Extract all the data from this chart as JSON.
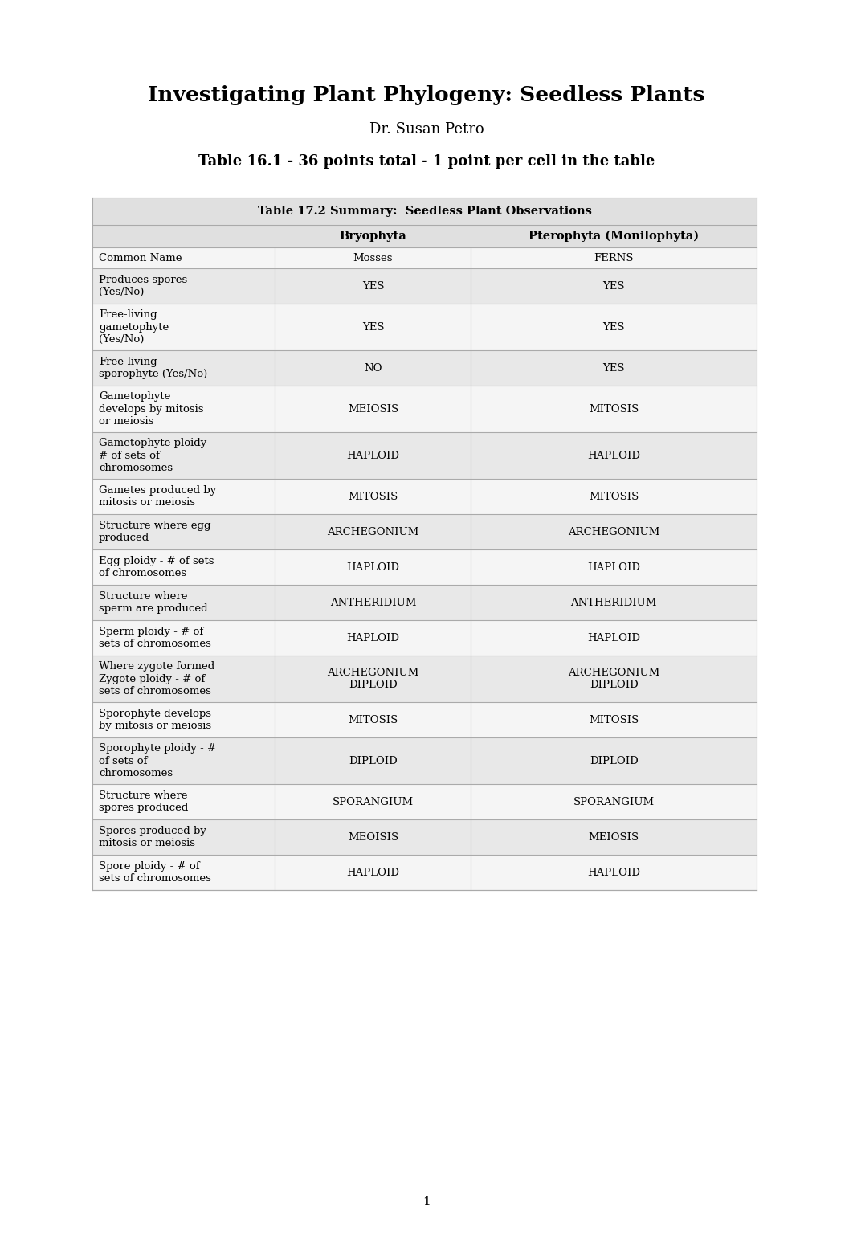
{
  "title": "Investigating Plant Phylogeny: Seedless Plants",
  "subtitle1": "Dr. Susan Petro",
  "subtitle2": "Table 16.1 - 36 points total - 1 point per cell in the table",
  "table_title": "Table 17.2 Summary:  Seedless Plant Observations",
  "col_headers": [
    "Bryophyta",
    "Pterophyta (Monilophyta)"
  ],
  "rows": [
    [
      "Common Name",
      "Mosses",
      "FERNS"
    ],
    [
      "Produces spores\n(Yes/No)",
      "YES",
      "YES"
    ],
    [
      "Free-living\ngametophyte\n(Yes/No)",
      "YES",
      "YES"
    ],
    [
      "Free-living\nsporophyte (Yes/No)",
      "NO",
      "YES"
    ],
    [
      "Gametophyte\ndevelops by mitosis\nor meiosis",
      "MEIOSIS",
      "MITOSIS"
    ],
    [
      "Gametophyte ploidy -\n# of sets of\nchromosomes",
      "HAPLOID",
      "HAPLOID"
    ],
    [
      "Gametes produced by\nmitosis or meiosis",
      "MITOSIS",
      "MITOSIS"
    ],
    [
      "Structure where egg\nproduced",
      "ARCHEGONIUM",
      "ARCHEGONIUM"
    ],
    [
      "Egg ploidy - # of sets\nof chromosomes",
      "HAPLOID",
      "HAPLOID"
    ],
    [
      "Structure where\nsperm are produced",
      "ANTHERIDIUM",
      "ANTHERIDIUM"
    ],
    [
      "Sperm ploidy - # of\nsets of chromosomes",
      "HAPLOID",
      "HAPLOID"
    ],
    [
      "Where zygote formed\nZygote ploidy - # of\nsets of chromosomes",
      "ARCHEGONIUM\nDIPLOID",
      "ARCHEGONIUM\nDIPLOID"
    ],
    [
      "Sporophyte develops\nby mitosis or meiosis",
      "MITOSIS",
      "MITOSIS"
    ],
    [
      "Sporophyte ploidy - #\nof sets of\nchromosomes",
      "DIPLOID",
      "DIPLOID"
    ],
    [
      "Structure where\nspores produced",
      "SPORANGIUM",
      "SPORANGIUM"
    ],
    [
      "Spores produced by\nmitosis or meiosis",
      "MEOISIS",
      "MEIOSIS"
    ],
    [
      "Spore ploidy - # of\nsets of chromosomes",
      "HAPLOID",
      "HAPLOID"
    ]
  ],
  "row_colors": [
    "#f5f5f5",
    "#e8e8e8",
    "#f5f5f5",
    "#e8e8e8",
    "#f5f5f5",
    "#e8e8e8",
    "#f5f5f5",
    "#e8e8e8",
    "#f5f5f5",
    "#e8e8e8",
    "#f5f5f5",
    "#e8e8e8",
    "#f5f5f5",
    "#e8e8e8",
    "#f5f5f5",
    "#e8e8e8",
    "#f5f5f5"
  ],
  "page_number": "1",
  "bg_color": "#ffffff",
  "table_header_color": "#e0e0e0",
  "border_color": "#aaaaaa"
}
